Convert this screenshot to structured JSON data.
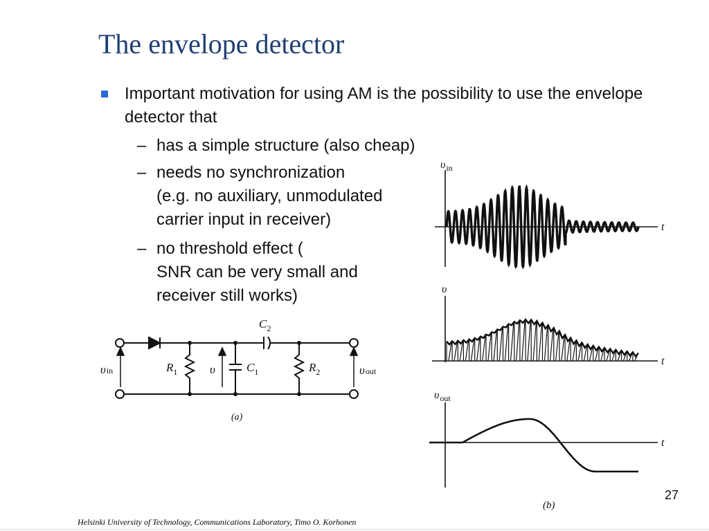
{
  "slide": {
    "title": "The envelope detector",
    "bullet": "Important motivation for using AM is the possibility to use the envelope detector that",
    "subitems": [
      {
        "dash": "–",
        "lines": [
          "has a simple structure (also cheap)"
        ]
      },
      {
        "dash": "–",
        "lines": [
          "needs no synchronization",
          "(e.g. no auxiliary, unmodulated",
          "carrier input in receiver)"
        ]
      },
      {
        "dash": "–",
        "lines": [
          "no threshold effect (",
          "SNR can be very small and",
          "receiver still works)"
        ]
      }
    ],
    "footer": "Helsinki University of Technology, Communications Laboratory, Timo O. Korhonen",
    "page_number": "27"
  },
  "figure_a": {
    "caption": "(a)",
    "labels": {
      "vin_v": "υ",
      "vin_sub": "in",
      "r1_r": "R",
      "r1_sub": "1",
      "v": "υ",
      "c1_c": "C",
      "c1_sub": "1",
      "c2_c": "C",
      "c2_sub": "2",
      "r2_r": "R",
      "r2_sub": "2",
      "vout_v": "υ",
      "vout_sub": "out"
    }
  },
  "figure_b": {
    "caption": "(b)",
    "t_label": "t",
    "plots": [
      {
        "ylabel": "υ",
        "ysub": "in"
      },
      {
        "ylabel": "υ",
        "ysub": ""
      },
      {
        "ylabel": "υ",
        "ysub": "out"
      }
    ]
  },
  "colors": {
    "title": "#1f3f73",
    "bullet": "#2a6ad6",
    "ink": "#111111"
  }
}
